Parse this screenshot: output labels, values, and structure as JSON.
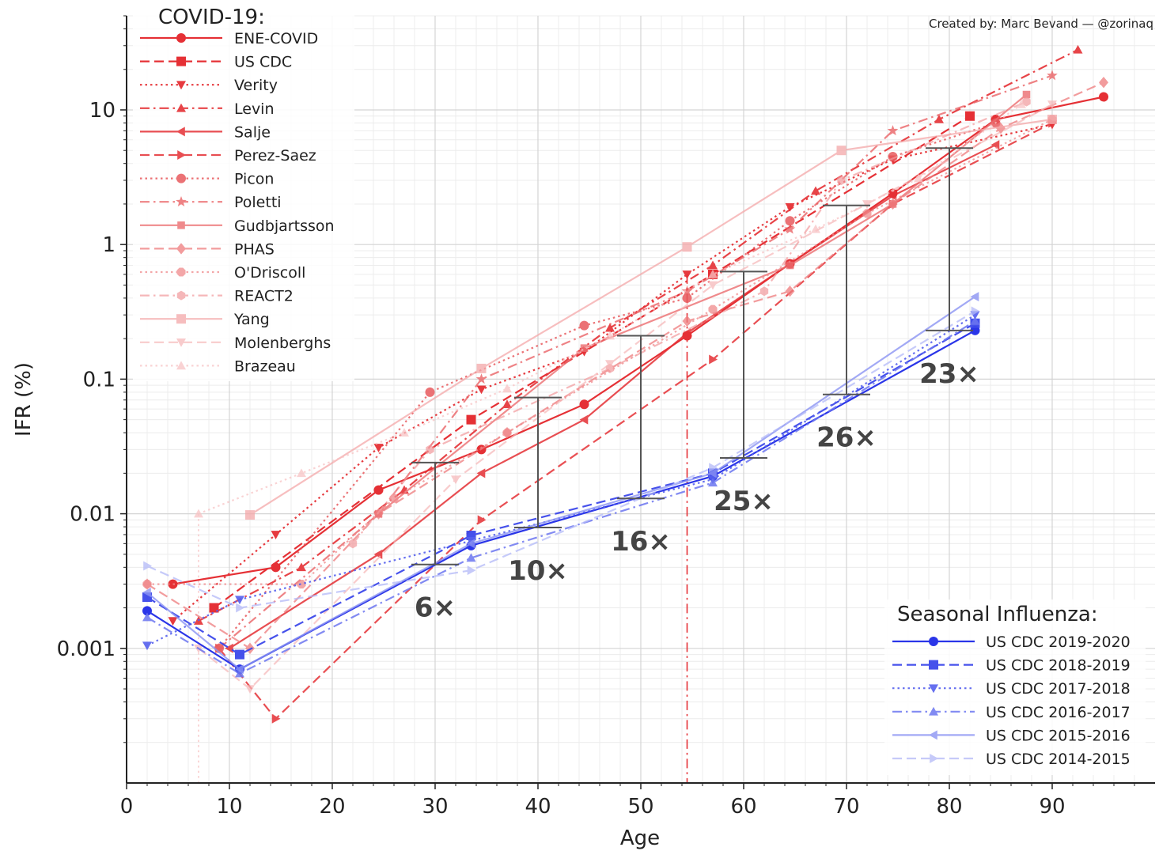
{
  "credit": "Created by: Marc Bevand — @zorinaq",
  "chart_data": {
    "type": "line",
    "xlabel": "Age",
    "ylabel": "IFR (%)",
    "x_ticks": [
      0,
      10,
      20,
      30,
      40,
      50,
      60,
      70,
      80,
      90
    ],
    "y_ticks": [
      0.001,
      0.01,
      0.1,
      1,
      10
    ],
    "y_tick_labels": [
      "0.001",
      "0.01",
      "0.1",
      "1",
      "10"
    ],
    "xlim": [
      0,
      100
    ],
    "ylim": [
      0.0001,
      50
    ],
    "y_scale": "log",
    "grid": true,
    "covid_legend_title": "COVID-19:",
    "flu_legend_title": "Seasonal Influenza:",
    "reference_age": 54.5,
    "covid_series": [
      {
        "name": "ENE-COVID",
        "color": "#e53035",
        "dash": "solid",
        "marker": "circle",
        "opacity": 1.0,
        "points": [
          [
            4.5,
            0.003
          ],
          [
            14.5,
            0.004
          ],
          [
            24.5,
            0.015
          ],
          [
            34.5,
            0.03
          ],
          [
            44.5,
            0.065
          ],
          [
            54.5,
            0.21
          ],
          [
            64.5,
            0.72
          ],
          [
            74.5,
            2.4
          ],
          [
            84.5,
            8.5
          ],
          [
            95,
            12.5
          ]
        ]
      },
      {
        "name": "US CDC",
        "color": "#e53035",
        "dash": "dashed",
        "marker": "square",
        "opacity": 1.0,
        "points": [
          [
            8.5,
            0.002
          ],
          [
            33.5,
            0.05
          ],
          [
            57,
            0.6
          ],
          [
            82,
            9
          ]
        ]
      },
      {
        "name": "Verity",
        "color": "#e53035",
        "dash": "dotted",
        "marker": "triangle-down",
        "opacity": 0.95,
        "points": [
          [
            4.5,
            0.0016
          ],
          [
            14.5,
            0.007
          ],
          [
            24.5,
            0.031
          ],
          [
            34.5,
            0.084
          ],
          [
            44.5,
            0.16
          ],
          [
            54.5,
            0.6
          ],
          [
            64.5,
            1.9
          ],
          [
            74.5,
            4.3
          ],
          [
            90,
            7.8
          ]
        ]
      },
      {
        "name": "Levin",
        "color": "#e53035",
        "dash": "dashdot",
        "marker": "triangle-up",
        "opacity": 0.9,
        "points": [
          [
            7,
            0.0016
          ],
          [
            17,
            0.004
          ],
          [
            27,
            0.015
          ],
          [
            37,
            0.065
          ],
          [
            47,
            0.24
          ],
          [
            57,
            0.7
          ],
          [
            67,
            2.5
          ],
          [
            79,
            8.5
          ],
          [
            92.5,
            28
          ]
        ]
      },
      {
        "name": "Salje",
        "color": "#e53035",
        "dash": "solid",
        "marker": "triangle-left",
        "opacity": 0.85,
        "points": [
          [
            10,
            0.001
          ],
          [
            24.5,
            0.005
          ],
          [
            34.5,
            0.02
          ],
          [
            44.5,
            0.05
          ],
          [
            54.5,
            0.22
          ],
          [
            64.5,
            0.72
          ],
          [
            74.5,
            2.3
          ],
          [
            84.5,
            5.5
          ]
        ]
      },
      {
        "name": "Perez-Saez",
        "color": "#e53035",
        "dash": "dashed",
        "marker": "triangle-right",
        "opacity": 0.85,
        "points": [
          [
            9,
            0.001
          ],
          [
            14.5,
            0.0003
          ],
          [
            34.5,
            0.009
          ],
          [
            57,
            0.14
          ],
          [
            74.5,
            2
          ],
          [
            90,
            8
          ]
        ]
      },
      {
        "name": "Picon",
        "color": "#e85a5e",
        "dash": "dotted",
        "marker": "circle",
        "opacity": 0.85,
        "points": [
          [
            9,
            0.001
          ],
          [
            29.5,
            0.08
          ],
          [
            44.5,
            0.25
          ],
          [
            54.5,
            0.4
          ],
          [
            64.5,
            1.5
          ],
          [
            74.5,
            4.5
          ],
          [
            84.5,
            8
          ]
        ]
      },
      {
        "name": "Poletti",
        "color": "#ea6366",
        "dash": "dashdot",
        "marker": "star",
        "opacity": 0.8,
        "points": [
          [
            9,
            0.001
          ],
          [
            24.5,
            0.01
          ],
          [
            34.5,
            0.1
          ],
          [
            54.5,
            0.45
          ],
          [
            64.5,
            1.3
          ],
          [
            74.5,
            7
          ],
          [
            90,
            18
          ]
        ]
      },
      {
        "name": "Gudbjartsson",
        "color": "#ec6e70",
        "dash": "solid",
        "marker": "square-small",
        "opacity": 0.8,
        "points": [
          [
            24.5,
            0.01
          ],
          [
            44.5,
            0.17
          ],
          [
            64.5,
            0.7
          ],
          [
            74.5,
            2
          ],
          [
            87.5,
            13
          ]
        ]
      },
      {
        "name": "PHAS",
        "color": "#ee7b7d",
        "dash": "dashed",
        "marker": "diamond",
        "opacity": 0.75,
        "points": [
          [
            2,
            0.003
          ],
          [
            12,
            0.001
          ],
          [
            24.5,
            0.01
          ],
          [
            37,
            0.04
          ],
          [
            54.5,
            0.27
          ],
          [
            64.5,
            0.45
          ],
          [
            74.5,
            2
          ],
          [
            85,
            7.3
          ],
          [
            95,
            16
          ]
        ]
      },
      {
        "name": "O'Driscoll",
        "color": "#f08a8c",
        "dash": "dotted",
        "marker": "octagon",
        "opacity": 0.75,
        "points": [
          [
            2,
            0.003
          ],
          [
            17,
            0.003
          ],
          [
            26,
            0.013
          ],
          [
            37,
            0.04
          ],
          [
            57,
            0.33
          ],
          [
            72,
            1.7
          ],
          [
            90,
            8.5
          ]
        ]
      },
      {
        "name": "REACT2",
        "color": "#f29a9c",
        "dash": "dashdot",
        "marker": "hexagon",
        "opacity": 0.7,
        "points": [
          [
            22,
            0.006
          ],
          [
            29.5,
            0.03
          ],
          [
            47,
            0.12
          ],
          [
            62,
            0.45
          ],
          [
            69.5,
            3
          ],
          [
            87.5,
            11.5
          ]
        ]
      },
      {
        "name": "Yang",
        "color": "#f4a8a9",
        "dash": "solid",
        "marker": "square",
        "opacity": 0.75,
        "points": [
          [
            12,
            0.0098
          ],
          [
            34.5,
            0.12
          ],
          [
            54.5,
            0.96
          ],
          [
            69.5,
            5
          ],
          [
            90,
            8.5
          ]
        ]
      },
      {
        "name": "Molenberghs",
        "color": "#f6b6b7",
        "dash": "dashed",
        "marker": "triangle-down",
        "opacity": 0.7,
        "points": [
          [
            7,
            0.001
          ],
          [
            12,
            0.0005
          ],
          [
            32,
            0.018
          ],
          [
            47,
            0.13
          ],
          [
            57,
            0.5
          ],
          [
            72,
            2
          ],
          [
            90,
            11
          ]
        ]
      },
      {
        "name": "Brazeau",
        "color": "#f8c4c5",
        "dash": "dotted",
        "marker": "triangle-up",
        "opacity": 0.75,
        "points": [
          [
            7,
            0.01
          ],
          [
            17,
            0.02
          ],
          [
            27,
            0.04
          ],
          [
            37,
            0.085
          ],
          [
            47,
            0.21
          ],
          [
            57,
            0.6
          ],
          [
            67,
            1.3
          ],
          [
            77,
            3.1
          ],
          [
            87,
            11
          ]
        ]
      }
    ],
    "flu_series": [
      {
        "name": "US CDC 2019-2020",
        "color": "#2a35e8",
        "dash": "solid",
        "marker": "circle",
        "opacity": 1.0,
        "points": [
          [
            2,
            0.0019
          ],
          [
            11,
            0.0007
          ],
          [
            33.5,
            0.0058
          ],
          [
            57,
            0.019
          ],
          [
            82.5,
            0.23
          ]
        ]
      },
      {
        "name": "US CDC 2018-2019",
        "color": "#3c48ea",
        "dash": "dashed",
        "marker": "square",
        "opacity": 0.95,
        "points": [
          [
            2,
            0.0024
          ],
          [
            11,
            0.0009
          ],
          [
            33.5,
            0.0069
          ],
          [
            57,
            0.02
          ],
          [
            82.5,
            0.26
          ]
        ]
      },
      {
        "name": "US CDC 2017-2018",
        "color": "#5560ee",
        "dash": "dotted",
        "marker": "triangle-down",
        "opacity": 0.9,
        "points": [
          [
            2,
            0.00105
          ],
          [
            11,
            0.0023
          ],
          [
            33.5,
            0.0063
          ],
          [
            57,
            0.018
          ],
          [
            82.5,
            0.3
          ]
        ]
      },
      {
        "name": "US CDC 2016-2017",
        "color": "#6c76f0",
        "dash": "dashdot",
        "marker": "triangle-up",
        "opacity": 0.85,
        "points": [
          [
            2,
            0.0017
          ],
          [
            11,
            0.00065
          ],
          [
            33.5,
            0.0047
          ],
          [
            57,
            0.017
          ],
          [
            82.5,
            0.27
          ]
        ]
      },
      {
        "name": "US CDC 2015-2016",
        "color": "#8b94f3",
        "dash": "solid",
        "marker": "triangle-left",
        "opacity": 0.8,
        "points": [
          [
            2,
            0.0026
          ],
          [
            11,
            0.0007
          ],
          [
            33.5,
            0.006
          ],
          [
            57,
            0.02
          ],
          [
            82.5,
            0.41
          ]
        ]
      },
      {
        "name": "US CDC 2014-2015",
        "color": "#b3b9f8",
        "dash": "dashed",
        "marker": "triangle-right",
        "opacity": 0.75,
        "points": [
          [
            2,
            0.0041
          ],
          [
            11,
            0.002
          ],
          [
            33.5,
            0.0038
          ],
          [
            57,
            0.022
          ],
          [
            82.5,
            0.32
          ]
        ]
      }
    ],
    "ratio_bars": [
      {
        "age": 30,
        "low": 0.0042,
        "high": 0.024,
        "label": "6×"
      },
      {
        "age": 40,
        "low": 0.0079,
        "high": 0.073,
        "label": "10×"
      },
      {
        "age": 50,
        "low": 0.013,
        "high": 0.21,
        "label": "16×"
      },
      {
        "age": 60,
        "low": 0.026,
        "high": 0.63,
        "label": "25×"
      },
      {
        "age": 70,
        "low": 0.077,
        "high": 1.95,
        "label": "26×"
      },
      {
        "age": 80,
        "low": 0.23,
        "high": 5.2,
        "label": "23×"
      }
    ]
  }
}
